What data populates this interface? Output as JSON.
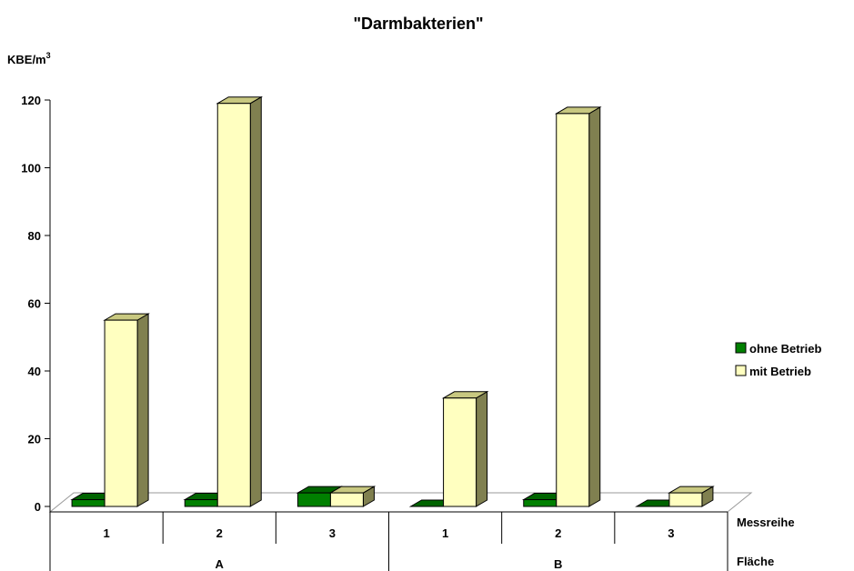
{
  "chart_data": {
    "type": "bar",
    "style": "3d-clustered",
    "title": "\"Darmbakterien\"",
    "ylabel": "KBE/m",
    "ylabel_superscript": "3",
    "ylim": [
      0,
      120
    ],
    "yticks": [
      0,
      20,
      40,
      60,
      80,
      100,
      120
    ],
    "grid": false,
    "legend_position": "right",
    "x_level1_label": "Messreihe",
    "x_level2_label": "Fläche",
    "groups": [
      {
        "label": "A",
        "categories": [
          "1",
          "2",
          "3"
        ]
      },
      {
        "label": "B",
        "categories": [
          "1",
          "2",
          "3"
        ]
      }
    ],
    "series": [
      {
        "name": "ohne Betrieb",
        "color": "#008000",
        "side_color": "#004d00",
        "top_color": "#006400",
        "values": [
          2,
          2,
          4,
          0,
          2,
          0
        ]
      },
      {
        "name": "mit Betrieb",
        "color": "#ffffc0",
        "side_color": "#808050",
        "top_color": "#c8c880",
        "values": [
          55,
          119,
          4,
          32,
          116,
          4
        ]
      }
    ]
  }
}
